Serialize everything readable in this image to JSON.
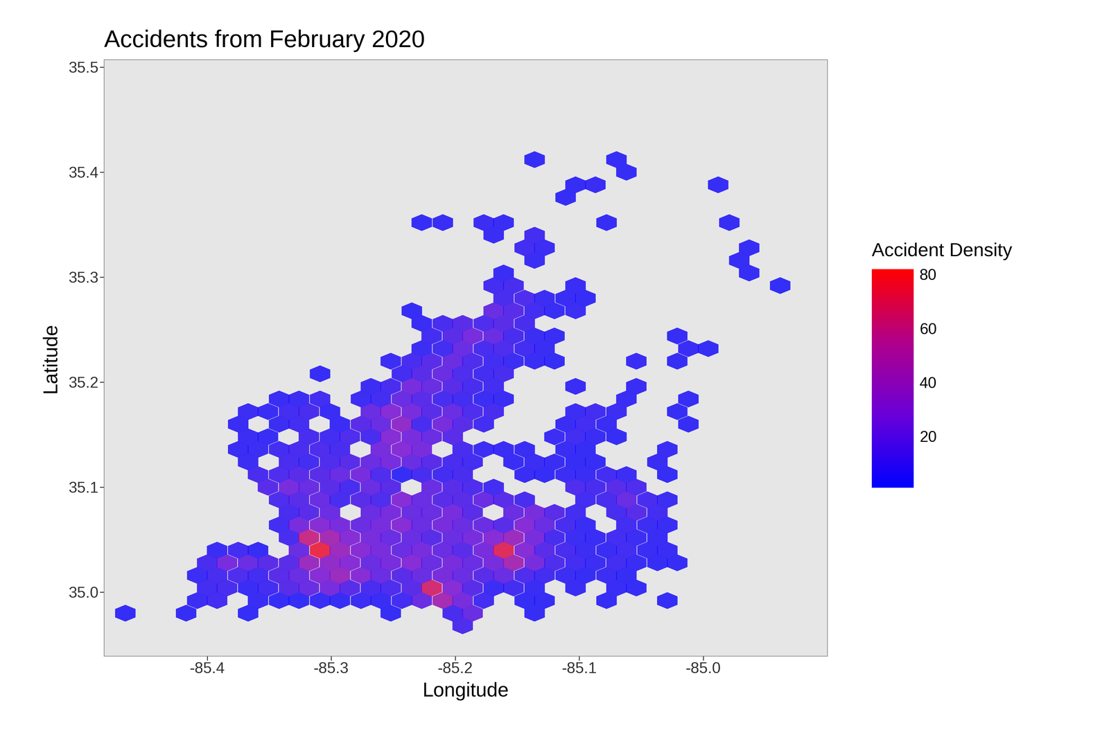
{
  "chart_data": {
    "type": "hexbin",
    "title": "Accidents from February 2020",
    "x_label": "Longitude",
    "y_label": "Latitude",
    "xlim": [
      -85.483,
      -84.9
    ],
    "ylim": [
      34.939,
      35.507
    ],
    "xticks": [
      -85.4,
      -85.3,
      -85.2,
      -85.1,
      -85.0
    ],
    "yticks": [
      35.0,
      35.1,
      35.2,
      35.3,
      35.4,
      35.5
    ],
    "grid": false,
    "color_label": "Accident Density",
    "color_range": [
      1,
      82
    ],
    "color_ticks": [
      20,
      40,
      60,
      80
    ],
    "cells": [
      {
        "lat": 34.968,
        "lon": [
          -85.194
        ],
        "counts": [
          12
        ]
      },
      {
        "lat": 34.98,
        "lon": [
          -85.466,
          -85.417,
          -85.367,
          -85.252,
          -85.202,
          -85.186,
          -85.136
        ],
        "counts": [
          3,
          4,
          3,
          4,
          10,
          20,
          4
        ]
      },
      {
        "lat": 34.992,
        "lon": [
          -85.408,
          -85.392,
          -85.359,
          -85.342,
          -85.326,
          -85.309,
          -85.293,
          -85.276,
          -85.26,
          -85.243,
          -85.227,
          -85.21,
          -85.194,
          -85.177,
          -85.144,
          -85.128,
          -85.078,
          -85.029
        ],
        "counts": [
          6,
          8,
          5,
          4,
          3,
          5,
          4,
          6,
          5,
          8,
          20,
          45,
          25,
          8,
          4,
          4,
          4,
          3
        ]
      },
      {
        "lat": 35.004,
        "lon": [
          -85.4,
          -85.384,
          -85.367,
          -85.351,
          -85.334,
          -85.318,
          -85.301,
          -85.285,
          -85.268,
          -85.252,
          -85.235,
          -85.219,
          -85.202,
          -85.186,
          -85.169,
          -85.153,
          -85.136,
          -85.103,
          -85.07,
          -85.054
        ],
        "counts": [
          8,
          10,
          5,
          8,
          15,
          20,
          25,
          15,
          10,
          12,
          15,
          65,
          30,
          15,
          6,
          8,
          5,
          5,
          5,
          4
        ]
      },
      {
        "lat": 35.016,
        "lon": [
          -85.408,
          -85.392,
          -85.375,
          -85.359,
          -85.342,
          -85.326,
          -85.309,
          -85.293,
          -85.276,
          -85.26,
          -85.243,
          -85.227,
          -85.21,
          -85.194,
          -85.177,
          -85.161,
          -85.144,
          -85.128,
          -85.111,
          -85.095,
          -85.078,
          -85.062
        ],
        "counts": [
          6,
          10,
          12,
          8,
          15,
          20,
          30,
          40,
          30,
          20,
          15,
          20,
          25,
          20,
          15,
          20,
          12,
          8,
          6,
          4,
          6,
          4
        ]
      },
      {
        "lat": 35.028,
        "lon": [
          -85.4,
          -85.384,
          -85.367,
          -85.351,
          -85.334,
          -85.318,
          -85.301,
          -85.285,
          -85.268,
          -85.252,
          -85.235,
          -85.219,
          -85.202,
          -85.186,
          -85.169,
          -85.153,
          -85.136,
          -85.12,
          -85.103,
          -85.087,
          -85.07,
          -85.054,
          -85.037,
          -85.021
        ],
        "counts": [
          10,
          25,
          20,
          15,
          15,
          40,
          35,
          30,
          20,
          25,
          30,
          20,
          25,
          20,
          25,
          45,
          25,
          12,
          8,
          6,
          8,
          5,
          4,
          4
        ]
      },
      {
        "lat": 35.04,
        "lon": [
          -85.392,
          -85.375,
          -85.359,
          -85.326,
          -85.309,
          -85.293,
          -85.276,
          -85.26,
          -85.243,
          -85.227,
          -85.21,
          -85.194,
          -85.177,
          -85.161,
          -85.144,
          -85.128,
          -85.111,
          -85.095,
          -85.078,
          -85.062,
          -85.045,
          -85.029
        ],
        "counts": [
          5,
          8,
          4,
          20,
          75,
          40,
          30,
          25,
          20,
          25,
          20,
          15,
          25,
          70,
          30,
          15,
          10,
          6,
          5,
          8,
          5,
          5
        ]
      },
      {
        "lat": 35.052,
        "lon": [
          -85.334,
          -85.318,
          -85.301,
          -85.285,
          -85.268,
          -85.252,
          -85.235,
          -85.219,
          -85.202,
          -85.186,
          -85.169,
          -85.153,
          -85.136,
          -85.12,
          -85.103,
          -85.087,
          -85.07,
          -85.054,
          -85.037
        ],
        "counts": [
          10,
          60,
          45,
          30,
          25,
          20,
          20,
          15,
          20,
          25,
          30,
          40,
          25,
          10,
          6,
          5,
          8,
          6,
          5
        ]
      },
      {
        "lat": 35.064,
        "lon": [
          -85.342,
          -85.326,
          -85.309,
          -85.293,
          -85.276,
          -85.26,
          -85.243,
          -85.227,
          -85.21,
          -85.194,
          -85.177,
          -85.161,
          -85.144,
          -85.128,
          -85.111,
          -85.095,
          -85.062,
          -85.045,
          -85.029
        ],
        "counts": [
          8,
          25,
          30,
          25,
          20,
          25,
          30,
          20,
          25,
          20,
          20,
          15,
          30,
          20,
          10,
          5,
          8,
          6,
          5
        ]
      },
      {
        "lat": 35.076,
        "lon": [
          -85.334,
          -85.318,
          -85.301,
          -85.268,
          -85.252,
          -85.235,
          -85.219,
          -85.202,
          -85.186,
          -85.153,
          -85.136,
          -85.12,
          -85.103,
          -85.07,
          -85.054,
          -85.037
        ],
        "counts": [
          10,
          15,
          20,
          20,
          25,
          20,
          20,
          25,
          15,
          20,
          25,
          15,
          8,
          10,
          15,
          8
        ]
      },
      {
        "lat": 35.088,
        "lon": [
          -85.342,
          -85.326,
          -85.309,
          -85.293,
          -85.276,
          -85.26,
          -85.243,
          -85.227,
          -85.21,
          -85.194,
          -85.177,
          -85.161,
          -85.144,
          -85.095,
          -85.078,
          -85.062,
          -85.045,
          -85.029
        ],
        "counts": [
          12,
          15,
          20,
          10,
          15,
          12,
          30,
          20,
          15,
          15,
          20,
          15,
          10,
          8,
          10,
          20,
          10,
          6
        ]
      },
      {
        "lat": 35.1,
        "lon": [
          -85.351,
          -85.334,
          -85.318,
          -85.301,
          -85.285,
          -85.268,
          -85.252,
          -85.219,
          -85.202,
          -85.186,
          -85.169,
          -85.103,
          -85.087,
          -85.07,
          -85.054
        ],
        "counts": [
          15,
          25,
          20,
          15,
          10,
          20,
          15,
          20,
          15,
          12,
          8,
          12,
          10,
          15,
          12
        ]
      },
      {
        "lat": 35.112,
        "lon": [
          -85.359,
          -85.342,
          -85.326,
          -85.309,
          -85.293,
          -85.276,
          -85.26,
          -85.243,
          -85.227,
          -85.21,
          -85.194,
          -85.144,
          -85.128,
          -85.111,
          -85.095,
          -85.078,
          -85.062,
          -85.029
        ],
        "counts": [
          10,
          12,
          15,
          15,
          20,
          25,
          12,
          4,
          10,
          8,
          10,
          5,
          4,
          6,
          5,
          8,
          6,
          4
        ]
      },
      {
        "lat": 35.124,
        "lon": [
          -85.367,
          -85.334,
          -85.318,
          -85.301,
          -85.285,
          -85.268,
          -85.252,
          -85.235,
          -85.219,
          -85.202,
          -85.186,
          -85.153,
          -85.136,
          -85.12,
          -85.103,
          -85.087,
          -85.037
        ],
        "counts": [
          6,
          10,
          8,
          12,
          15,
          20,
          25,
          20,
          15,
          10,
          8,
          5,
          6,
          5,
          4,
          4,
          5
        ]
      },
      {
        "lat": 35.136,
        "lon": [
          -85.375,
          -85.359,
          -85.342,
          -85.326,
          -85.309,
          -85.293,
          -85.26,
          -85.243,
          -85.227,
          -85.194,
          -85.177,
          -85.161,
          -85.144,
          -85.111,
          -85.095,
          -85.029
        ],
        "counts": [
          5,
          6,
          8,
          10,
          12,
          10,
          25,
          30,
          25,
          10,
          6,
          5,
          5,
          5,
          4,
          5
        ]
      },
      {
        "lat": 35.148,
        "lon": [
          -85.367,
          -85.351,
          -85.318,
          -85.301,
          -85.285,
          -85.268,
          -85.252,
          -85.235,
          -85.219,
          -85.202,
          -85.12,
          -85.103,
          -85.087,
          -85.07
        ],
        "counts": [
          6,
          5,
          10,
          8,
          12,
          10,
          30,
          25,
          20,
          15,
          6,
          8,
          5,
          4
        ]
      },
      {
        "lat": 35.16,
        "lon": [
          -85.375,
          -85.342,
          -85.326,
          -85.293,
          -85.276,
          -85.26,
          -85.243,
          -85.227,
          -85.21,
          -85.194,
          -85.177,
          -85.111,
          -85.095,
          -85.078,
          -85.012
        ],
        "counts": [
          5,
          6,
          8,
          5,
          15,
          20,
          35,
          10,
          25,
          15,
          8,
          5,
          8,
          5,
          4
        ]
      },
      {
        "lat": 35.172,
        "lon": [
          -85.367,
          -85.351,
          -85.334,
          -85.318,
          -85.301,
          -85.268,
          -85.252,
          -85.235,
          -85.219,
          -85.202,
          -85.186,
          -85.169,
          -85.103,
          -85.087,
          -85.07,
          -85.021
        ],
        "counts": [
          6,
          5,
          8,
          10,
          5,
          20,
          30,
          25,
          15,
          20,
          12,
          10,
          6,
          8,
          6,
          4
        ]
      },
      {
        "lat": 35.184,
        "lon": [
          -85.342,
          -85.326,
          -85.309,
          -85.276,
          -85.26,
          -85.243,
          -85.227,
          -85.21,
          -85.194,
          -85.177,
          -85.161,
          -85.062,
          -85.012
        ],
        "counts": [
          5,
          6,
          8,
          6,
          8,
          20,
          15,
          10,
          8,
          6,
          5,
          5,
          4
        ]
      },
      {
        "lat": 35.196,
        "lon": [
          -85.268,
          -85.252,
          -85.235,
          -85.219,
          -85.202,
          -85.186,
          -85.169,
          -85.103,
          -85.054
        ],
        "counts": [
          6,
          10,
          25,
          20,
          15,
          10,
          8,
          5,
          5
        ]
      },
      {
        "lat": 35.208,
        "lon": [
          -85.309,
          -85.243,
          -85.227,
          -85.21,
          -85.194,
          -85.177,
          -85.161
        ],
        "counts": [
          4,
          8,
          15,
          20,
          12,
          8,
          10
        ]
      },
      {
        "lat": 35.22,
        "lon": [
          -85.252,
          -85.235,
          -85.219,
          -85.202,
          -85.186,
          -85.169,
          -85.153,
          -85.136,
          -85.12,
          -85.054,
          -85.021
        ],
        "counts": [
          6,
          10,
          15,
          20,
          12,
          8,
          6,
          5,
          4,
          5,
          4
        ]
      },
      {
        "lat": 35.232,
        "lon": [
          -85.227,
          -85.21,
          -85.194,
          -85.177,
          -85.161,
          -85.144,
          -85.128,
          -85.012,
          -84.996
        ],
        "counts": [
          6,
          8,
          20,
          10,
          12,
          8,
          5,
          5,
          4
        ]
      },
      {
        "lat": 35.244,
        "lon": [
          -85.219,
          -85.202,
          -85.186,
          -85.169,
          -85.153,
          -85.136,
          -85.12,
          -85.021
        ],
        "counts": [
          8,
          15,
          25,
          20,
          10,
          6,
          5,
          4
        ]
      },
      {
        "lat": 35.256,
        "lon": [
          -85.227,
          -85.21,
          -85.194,
          -85.177,
          -85.161,
          -85.144
        ],
        "counts": [
          5,
          10,
          15,
          12,
          15,
          10
        ]
      },
      {
        "lat": 35.268,
        "lon": [
          -85.235,
          -85.169,
          -85.153,
          -85.136,
          -85.12,
          -85.103
        ],
        "counts": [
          4,
          20,
          15,
          8,
          5,
          6
        ]
      },
      {
        "lat": 35.28,
        "lon": [
          -85.161,
          -85.144,
          -85.128,
          -85.111,
          -85.095
        ],
        "counts": [
          10,
          12,
          6,
          5,
          4
        ]
      },
      {
        "lat": 35.292,
        "lon": [
          -85.169,
          -85.153,
          -85.103,
          -84.938
        ],
        "counts": [
          8,
          10,
          5,
          3
        ]
      },
      {
        "lat": 35.304,
        "lon": [
          -85.161,
          -84.963
        ],
        "counts": [
          5,
          4
        ]
      },
      {
        "lat": 35.316,
        "lon": [
          -85.136,
          -84.971
        ],
        "counts": [
          5,
          4
        ]
      },
      {
        "lat": 35.328,
        "lon": [
          -85.144,
          -85.128,
          -84.963
        ],
        "counts": [
          8,
          6,
          4
        ]
      },
      {
        "lat": 35.34,
        "lon": [
          -85.169,
          -85.136
        ],
        "counts": [
          5,
          8
        ]
      },
      {
        "lat": 35.352,
        "lon": [
          -85.227,
          -85.21,
          -85.177,
          -85.161,
          -85.078,
          -84.979
        ],
        "counts": [
          4,
          5,
          6,
          5,
          4,
          4
        ]
      },
      {
        "lat": 35.376,
        "lon": [
          -85.111
        ],
        "counts": [
          4
        ]
      },
      {
        "lat": 35.388,
        "lon": [
          -85.103,
          -85.087,
          -84.988
        ],
        "counts": [
          4,
          5,
          4
        ]
      },
      {
        "lat": 35.4,
        "lon": [
          -85.062
        ],
        "counts": [
          4
        ]
      },
      {
        "lat": 35.412,
        "lon": [
          -85.136,
          -85.07
        ],
        "counts": [
          4,
          4
        ]
      }
    ]
  }
}
